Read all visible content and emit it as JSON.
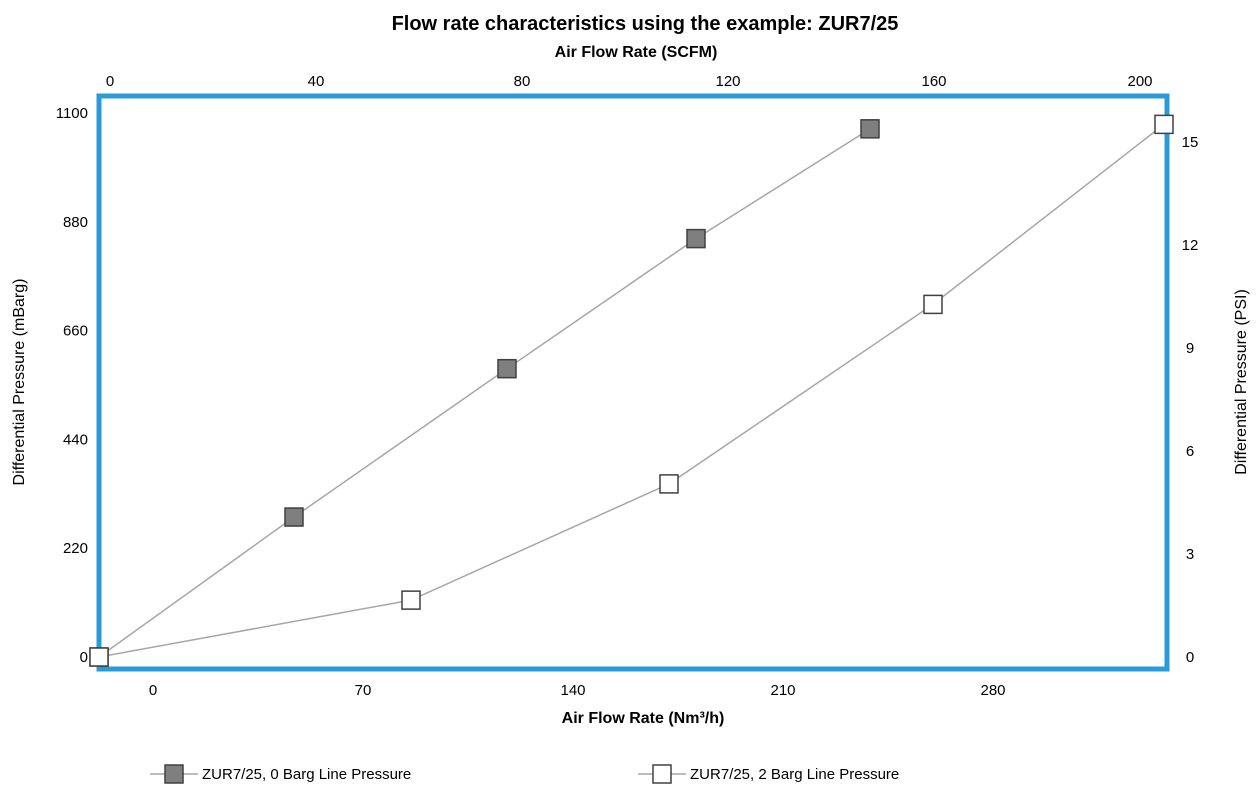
{
  "chart_data": {
    "type": "scatter",
    "title": "Flow rate characteristics using the example: ZUR7/25",
    "x_label_bottom": "Air Flow Rate (Nm³/h)",
    "x_label_top": "Air Flow Rate (SCFM)",
    "y_label_left": "Differential Pressure (mBarg)",
    "y_label_right": "Differential Pressure (PSI)",
    "x_ticks_bottom": [
      "0",
      "70",
      "140",
      "210",
      "280"
    ],
    "x_ticks_top": [
      "0",
      "40",
      "80",
      "120",
      "160",
      "200"
    ],
    "y_ticks_left": [
      "0",
      "220",
      "440",
      "660",
      "880",
      "1100"
    ],
    "y_ticks_right": [
      "0",
      "3",
      "6",
      "9",
      "12",
      "15"
    ],
    "xlim_bottom": [
      -18,
      338
    ],
    "ylim_left": [
      0,
      1100
    ],
    "grid": false,
    "legend_position": "bottom",
    "frame_color": "#2b9bd8",
    "series": [
      {
        "name": "ZUR7/25, 0 Barg Line Pressure",
        "marker": "filled-square",
        "marker_color": "#7f7f7f",
        "line_color": "#a6a6a6",
        "x": [
          -18,
          47,
          118,
          181,
          239
        ],
        "y": [
          0,
          283,
          583,
          846,
          1068
        ]
      },
      {
        "name": "ZUR7/25, 2 Barg Line Pressure",
        "marker": "open-square",
        "marker_color": "#ffffff",
        "line_color": "#a6a6a6",
        "x": [
          -18,
          86,
          172,
          260,
          337
        ],
        "y": [
          0,
          115,
          350,
          713,
          1077
        ]
      }
    ]
  }
}
